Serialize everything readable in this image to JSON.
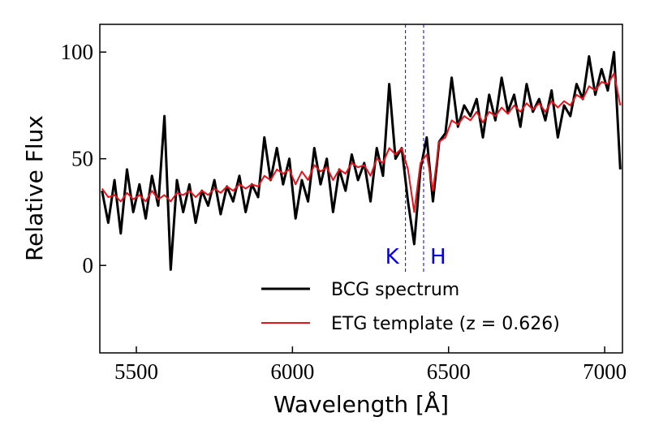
{
  "chart_data": {
    "type": "line",
    "xlabel": "Wavelength [Å]",
    "ylabel": "Relative Flux",
    "xlim": [
      5383,
      7057
    ],
    "ylim": [
      -41,
      113
    ],
    "xticks": [
      5500,
      6000,
      6500,
      7000
    ],
    "yticks": [
      0,
      50,
      100
    ],
    "annotations": [
      {
        "label": "K",
        "x": 6362,
        "color": "#0000ee"
      },
      {
        "label": "H",
        "x": 6420,
        "color": "#0000ee"
      }
    ],
    "x": [
      5390,
      5410,
      5430,
      5450,
      5470,
      5490,
      5510,
      5530,
      5550,
      5570,
      5590,
      5610,
      5630,
      5650,
      5670,
      5690,
      5710,
      5730,
      5750,
      5770,
      5790,
      5810,
      5830,
      5850,
      5870,
      5890,
      5910,
      5930,
      5950,
      5970,
      5990,
      6010,
      6030,
      6050,
      6070,
      6090,
      6110,
      6130,
      6150,
      6170,
      6190,
      6210,
      6230,
      6250,
      6270,
      6290,
      6310,
      6330,
      6350,
      6370,
      6390,
      6410,
      6430,
      6450,
      6470,
      6490,
      6510,
      6530,
      6550,
      6570,
      6590,
      6610,
      6630,
      6650,
      6670,
      6690,
      6710,
      6730,
      6750,
      6770,
      6790,
      6810,
      6830,
      6850,
      6870,
      6890,
      6910,
      6930,
      6950,
      6970,
      6990,
      7010,
      7030,
      7050
    ],
    "series": [
      {
        "name": "BCG spectrum",
        "color": "#000000",
        "values": [
          35,
          20,
          40,
          15,
          45,
          25,
          38,
          22,
          42,
          28,
          70,
          -2,
          40,
          25,
          38,
          20,
          35,
          28,
          40,
          24,
          37,
          30,
          42,
          25,
          38,
          32,
          60,
          40,
          55,
          38,
          50,
          22,
          40,
          30,
          55,
          38,
          50,
          25,
          45,
          35,
          52,
          40,
          48,
          30,
          55,
          42,
          85,
          50,
          55,
          30,
          10,
          45,
          60,
          30,
          58,
          62,
          88,
          65,
          75,
          70,
          78,
          60,
          80,
          68,
          88,
          72,
          80,
          65,
          85,
          72,
          78,
          68,
          82,
          60,
          75,
          70,
          85,
          78,
          98,
          80,
          92,
          82,
          100,
          45
        ]
      },
      {
        "name": "ETG template (z = 0.626)",
        "color": "#e8121a",
        "values": [
          36,
          32,
          33,
          30,
          34,
          31,
          33,
          30,
          35,
          31,
          33,
          30,
          34,
          33,
          35,
          32,
          35,
          33,
          36,
          34,
          37,
          35,
          38,
          36,
          38,
          37,
          42,
          40,
          45,
          43,
          45,
          38,
          44,
          40,
          47,
          44,
          46,
          40,
          45,
          43,
          48,
          46,
          47,
          42,
          50,
          48,
          55,
          52,
          55,
          45,
          25,
          48,
          52,
          35,
          58,
          60,
          68,
          66,
          70,
          68,
          72,
          67,
          72,
          70,
          74,
          71,
          75,
          72,
          76,
          73,
          76,
          72,
          77,
          74,
          77,
          75,
          80,
          78,
          84,
          82,
          86,
          85,
          90,
          75
        ]
      }
    ]
  }
}
